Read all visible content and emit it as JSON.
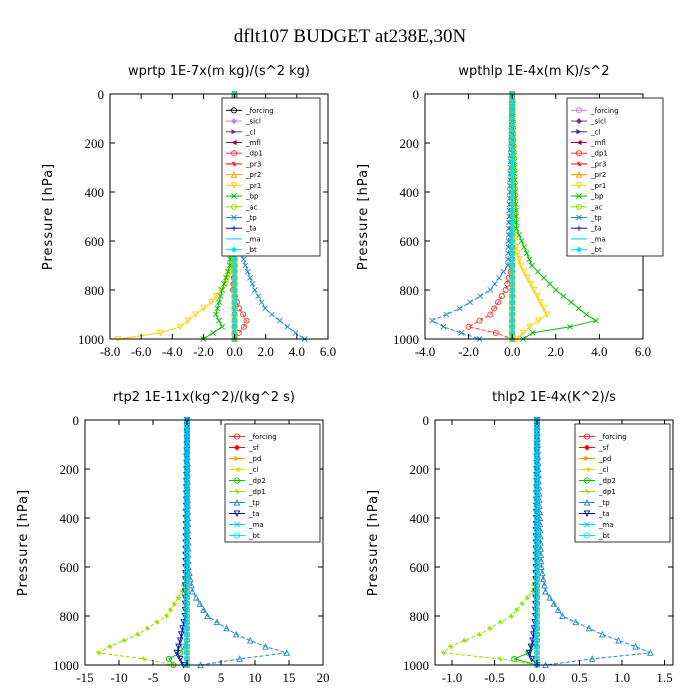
{
  "title": "dflt107  BUDGET at238E,30N",
  "chart_data": [
    {
      "type": "line",
      "title": "wprtp   1E-7x(m kg)/(s^2 kg)",
      "ylabel": "Pressure [hPa]",
      "xlim": [
        -8,
        6
      ],
      "ylim": [
        1000,
        0
      ],
      "xticks": [
        "-8.0",
        "-6.0",
        "-4.0",
        "-2.0",
        "0.0",
        "2.0",
        "4.0",
        "6.0"
      ],
      "yticks": [
        "0",
        "200",
        "400",
        "600",
        "800",
        "1000"
      ],
      "legend_position": "top-right",
      "series": [
        {
          "name": "_forcing",
          "color": "#000000",
          "p": [
            0,
            1000
          ],
          "v": [
            0,
            0
          ]
        },
        {
          "name": "_sicl",
          "color": "#c080ff",
          "p": [
            0,
            1000
          ],
          "v": [
            0,
            0
          ]
        },
        {
          "name": "_cl",
          "color": "#7030a0",
          "p": [
            0,
            1000
          ],
          "v": [
            0,
            0
          ]
        },
        {
          "name": "_mfl",
          "color": "#a00040",
          "p": [
            0,
            1000
          ],
          "v": [
            0,
            0
          ]
        },
        {
          "name": "_dp1",
          "color": "#ff3030",
          "p": [
            0,
            700,
            800,
            880,
            920,
            950,
            980,
            1000
          ],
          "v": [
            0,
            0,
            -0.1,
            0.3,
            0.8,
            0.6,
            0.2,
            0
          ]
        },
        {
          "name": "_pr3",
          "color": "#ff0000",
          "p": [
            0,
            1000
          ],
          "v": [
            0,
            0
          ]
        },
        {
          "name": "_pr2",
          "color": "#ff9a00",
          "p": [
            0,
            1000
          ],
          "v": [
            0,
            0
          ]
        },
        {
          "name": "_pr1",
          "color": "#ffd000",
          "p": [
            0,
            700,
            780,
            850,
            900,
            950,
            980,
            1000
          ],
          "v": [
            0,
            -0.2,
            -0.6,
            -1.5,
            -2.5,
            -3.5,
            -5,
            -7.5
          ]
        },
        {
          "name": "_bp",
          "color": "#00c000",
          "p": [
            0,
            700,
            800,
            900,
            950,
            980,
            1000
          ],
          "v": [
            0,
            -0.3,
            -0.8,
            -1.2,
            -0.8,
            -1.5,
            -2
          ]
        },
        {
          "name": "_ac",
          "color": "#90e000",
          "p": [
            0,
            1000
          ],
          "v": [
            0,
            0
          ]
        },
        {
          "name": "_tp",
          "color": "#1e88c8",
          "p": [
            0,
            600,
            700,
            800,
            880,
            930,
            970,
            1000
          ],
          "v": [
            0,
            0.2,
            0.7,
            1.3,
            2.0,
            3.0,
            3.8,
            4.5
          ]
        },
        {
          "name": "_ta",
          "color": "#0010a0",
          "p": [
            0,
            1000
          ],
          "v": [
            0,
            0
          ]
        },
        {
          "name": "_ma",
          "color": "#00c8ff",
          "p": [
            0,
            1000
          ],
          "v": [
            0,
            0
          ]
        },
        {
          "name": "_bt",
          "color": "#00e0ff",
          "p": [
            0,
            1000
          ],
          "v": [
            0,
            0
          ]
        }
      ]
    },
    {
      "type": "line",
      "title": "wpthlp   1E-4x(m K)/s^2",
      "ylabel": "Pressure [hPa]",
      "xlim": [
        -4,
        6
      ],
      "ylim": [
        1000,
        0
      ],
      "xticks": [
        "-4.0",
        "-2.0",
        "0.0",
        "2.0",
        "4.0",
        "6.0"
      ],
      "yticks": [
        "0",
        "200",
        "400",
        "600",
        "800",
        "1000"
      ],
      "legend_position": "top-right",
      "series": [
        {
          "name": "_forcing",
          "color": "#c080ff",
          "p": [
            0,
            1000
          ],
          "v": [
            0,
            0
          ]
        },
        {
          "name": "_sicl",
          "color": "#7030a0",
          "p": [
            0,
            1000
          ],
          "v": [
            0,
            0
          ]
        },
        {
          "name": "_cl",
          "color": "#5020a0",
          "p": [
            0,
            1000
          ],
          "v": [
            0,
            0
          ]
        },
        {
          "name": "_mfl",
          "color": "#a00040",
          "p": [
            0,
            1000
          ],
          "v": [
            0,
            0
          ]
        },
        {
          "name": "_dp1",
          "color": "#ff3030",
          "p": [
            0,
            700,
            800,
            900,
            950,
            980,
            1000
          ],
          "v": [
            0,
            0,
            -0.3,
            -1.0,
            -2.0,
            -0.5,
            0
          ]
        },
        {
          "name": "_pr3",
          "color": "#ff0000",
          "p": [
            0,
            1000
          ],
          "v": [
            0,
            0
          ]
        },
        {
          "name": "_pr2",
          "color": "#ff9a00",
          "p": [
            0,
            1000
          ],
          "v": [
            0,
            0
          ]
        },
        {
          "name": "_pr1",
          "color": "#ffd000",
          "p": [
            0,
            600,
            700,
            800,
            900,
            950,
            1000
          ],
          "v": [
            0,
            0.1,
            0.4,
            1.0,
            1.6,
            0.8,
            0.2
          ]
        },
        {
          "name": "_bp",
          "color": "#00c000",
          "p": [
            0,
            550,
            700,
            800,
            900,
            940,
            960,
            1000
          ],
          "v": [
            0,
            0.2,
            0.9,
            2.0,
            3.4,
            4.1,
            1.2,
            0.5
          ]
        },
        {
          "name": "_ac",
          "color": "#90e000",
          "p": [
            0,
            1000
          ],
          "v": [
            0,
            0
          ]
        },
        {
          "name": "_tp",
          "color": "#1e88c8",
          "p": [
            0,
            700,
            800,
            880,
            930,
            970,
            1000
          ],
          "v": [
            0,
            -0.2,
            -1.0,
            -2.5,
            -3.8,
            -2.5,
            -1.5
          ]
        },
        {
          "name": "_ta",
          "color": "#0010a0",
          "p": [
            0,
            1000
          ],
          "v": [
            0,
            0
          ]
        },
        {
          "name": "_ma",
          "color": "#00c8ff",
          "p": [
            0,
            1000
          ],
          "v": [
            0,
            0
          ]
        },
        {
          "name": "_bt",
          "color": "#00e0ff",
          "p": [
            0,
            1000
          ],
          "v": [
            0,
            0
          ]
        }
      ]
    },
    {
      "type": "line",
      "title": "rtp2   1E-11x(kg^2)/(kg^2 s)",
      "ylabel": "Pressure [hPa]",
      "xlim": [
        -15,
        20
      ],
      "ylim": [
        1000,
        0
      ],
      "xticks": [
        "-15",
        "-10",
        "-5",
        "0",
        "5",
        "10",
        "15",
        "20"
      ],
      "yticks": [
        "0",
        "200",
        "400",
        "600",
        "800",
        "1000"
      ],
      "legend_position": "top-right",
      "series": [
        {
          "name": "_forcing",
          "color": "#ff2020",
          "p": [
            0,
            1000
          ],
          "v": [
            0,
            0
          ]
        },
        {
          "name": "_sf",
          "color": "#ff0000",
          "p": [
            0,
            1000
          ],
          "v": [
            0,
            0
          ]
        },
        {
          "name": "_pd",
          "color": "#ff9a00",
          "p": [
            0,
            1000
          ],
          "v": [
            0,
            0
          ]
        },
        {
          "name": "_cl",
          "color": "#ffd000",
          "p": [
            0,
            1000
          ],
          "v": [
            0,
            0
          ]
        },
        {
          "name": "_dp2",
          "color": "#00c000",
          "p": [
            0,
            900,
            950,
            980,
            1000
          ],
          "v": [
            0,
            0,
            -1.0,
            -3.0,
            -2.0
          ]
        },
        {
          "name": "_dp1",
          "color": "#90e000",
          "p": [
            0,
            600,
            700,
            800,
            880,
            920,
            950,
            980,
            1000
          ],
          "v": [
            0,
            0,
            -0.7,
            -3.0,
            -7.5,
            -11,
            -13,
            -5,
            -2
          ]
        },
        {
          "name": "_tp",
          "color": "#1e88c8",
          "p": [
            0,
            600,
            700,
            800,
            880,
            930,
            960,
            980,
            1000
          ],
          "v": [
            0,
            0.2,
            0.8,
            3.0,
            7.5,
            12,
            16,
            5,
            2
          ]
        },
        {
          "name": "_ta",
          "color": "#0010a0",
          "p": [
            0,
            800,
            900,
            950,
            1000
          ],
          "v": [
            0,
            -0.3,
            -1.0,
            -1.5,
            -0.5
          ]
        },
        {
          "name": "_ma",
          "color": "#00c8ff",
          "p": [
            0,
            1000
          ],
          "v": [
            0,
            0
          ]
        },
        {
          "name": "_bt",
          "color": "#00e0ff",
          "p": [
            0,
            1000
          ],
          "v": [
            0,
            0
          ]
        }
      ]
    },
    {
      "type": "line",
      "title": "thlp2   1E-4x(K^2)/s",
      "ylabel": "Pressure [hPa]",
      "xlim": [
        -1.2,
        1.6
      ],
      "ylim": [
        1000,
        0
      ],
      "xticks": [
        "-1.0",
        "-0.5",
        "0.0",
        "0.5",
        "1.0",
        "1.5"
      ],
      "yticks": [
        "0",
        "200",
        "400",
        "600",
        "800",
        "1000"
      ],
      "legend_position": "top-right",
      "series": [
        {
          "name": "_forcing",
          "color": "#ff2020",
          "p": [
            0,
            1000
          ],
          "v": [
            0,
            0
          ]
        },
        {
          "name": "_sf",
          "color": "#ff0000",
          "p": [
            0,
            1000
          ],
          "v": [
            0,
            0
          ]
        },
        {
          "name": "_pd",
          "color": "#ff9a00",
          "p": [
            0,
            1000
          ],
          "v": [
            0,
            0
          ]
        },
        {
          "name": "_cl",
          "color": "#ffd000",
          "p": [
            0,
            1000
          ],
          "v": [
            0,
            0
          ]
        },
        {
          "name": "_dp2",
          "color": "#00c000",
          "p": [
            0,
            900,
            950,
            980,
            1000
          ],
          "v": [
            0,
            0,
            -0.1,
            -0.3,
            0
          ]
        },
        {
          "name": "_dp1",
          "color": "#90e000",
          "p": [
            0,
            600,
            700,
            800,
            880,
            920,
            950,
            980,
            1000
          ],
          "v": [
            0,
            0,
            -0.05,
            -0.3,
            -0.7,
            -1.0,
            -1.1,
            -0.3,
            0
          ]
        },
        {
          "name": "_tp",
          "color": "#1e88c8",
          "p": [
            0,
            600,
            700,
            800,
            880,
            930,
            960,
            980,
            1000
          ],
          "v": [
            0,
            0.05,
            0.1,
            0.3,
            0.8,
            1.2,
            1.4,
            0.4,
            0.1
          ]
        },
        {
          "name": "_ta",
          "color": "#0010a0",
          "p": [
            0,
            800,
            900,
            960,
            1000
          ],
          "v": [
            0,
            -0.02,
            -0.05,
            -0.1,
            0
          ]
        },
        {
          "name": "_ma",
          "color": "#00c8ff",
          "p": [
            0,
            1000
          ],
          "v": [
            0,
            0
          ]
        },
        {
          "name": "_bt",
          "color": "#00e0ff",
          "p": [
            0,
            1000
          ],
          "v": [
            0,
            0
          ]
        }
      ]
    }
  ]
}
